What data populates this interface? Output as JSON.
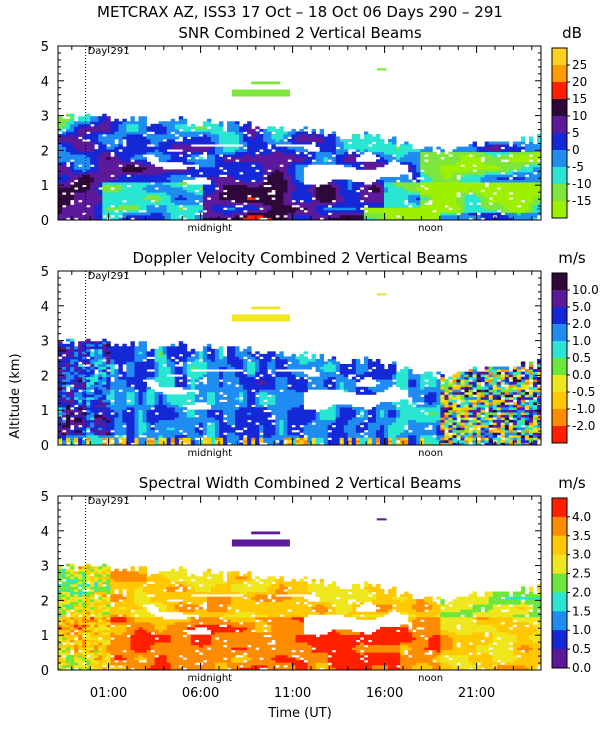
{
  "figure_title": "METCRAX AZ, ISS3  17 Oct – 18 Oct 06 Days 290 – 291",
  "ylabel": "Altitude (km)",
  "xlabel": "Time (UT)",
  "xticks": [
    "01:00",
    "06:00",
    "11:00",
    "16:00",
    "21:00"
  ],
  "xtick_hours": [
    1,
    6,
    11,
    16,
    21
  ],
  "midnight_label": "midnight",
  "noon_label": "noon",
  "day_marker": "Day 291",
  "chart_data": [
    {
      "type": "heatmap",
      "title": "SNR Combined 2 Vertical Beams",
      "unit": "dB",
      "ylim": [
        0,
        5
      ],
      "yticks": [
        "0",
        "1",
        "2",
        "3",
        "4",
        "5"
      ],
      "colorbar_labels": [
        "25",
        "20",
        "15",
        "10",
        "5",
        "0",
        "-5",
        "-10",
        "-15"
      ],
      "colors": [
        "#ffd21e",
        "#ff9a00",
        "#ff2000",
        "#2e0838",
        "#5c1a9a",
        "#1428d8",
        "#1e8cf0",
        "#28e6d2",
        "#7ce63c",
        "#9cf000"
      ],
      "field": "snr"
    },
    {
      "type": "heatmap",
      "title": "Doppler Velocity Combined 2 Vertical Beams",
      "unit": "m/s",
      "ylim": [
        0,
        5
      ],
      "yticks": [
        "0",
        "1",
        "2",
        "3",
        "4",
        "5"
      ],
      "colorbar_labels": [
        "10.0",
        "5.0",
        "2.0",
        "1.0",
        "0.5",
        "0.0",
        "-0.5",
        "-1.0",
        "-2.0"
      ],
      "colors": [
        "#2e0838",
        "#5c1a9a",
        "#1428d8",
        "#1e8cf0",
        "#28e6d2",
        "#6ce83c",
        "#f0e61e",
        "#ffc800",
        "#ff8c00",
        "#ff2000"
      ],
      "field": "doppler"
    },
    {
      "type": "heatmap",
      "title": "Spectral Width Combined 2 Vertical Beams",
      "unit": "m/s",
      "ylim": [
        0,
        5
      ],
      "yticks": [
        "0",
        "1",
        "2",
        "3",
        "4",
        "5"
      ],
      "colorbar_labels": [
        "4.0",
        "3.5",
        "3.0",
        "2.5",
        "2.0",
        "1.5",
        "1.0",
        "0.5",
        "0.0"
      ],
      "colors": [
        "#ff2000",
        "#ff8c00",
        "#ffc800",
        "#f0e61e",
        "#6ce83c",
        "#28e6d2",
        "#1e8cf0",
        "#1428d8",
        "#5c1a9a"
      ],
      "field": "width"
    }
  ]
}
